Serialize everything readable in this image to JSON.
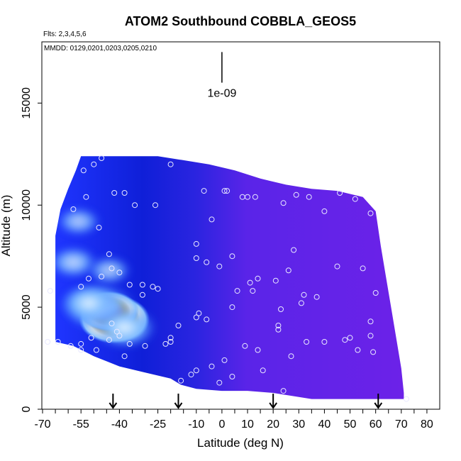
{
  "chart_data": {
    "type": "heatmap",
    "title": "ATOM2 Southbound COBBLA_GEOS5",
    "flights_note": "Flts: 2,3,4,5,6",
    "dates_note": "MMDD: 0129,0201,0203,0205,0210",
    "scale_label": "1e-09",
    "xlabel": "Latitude (deg N)",
    "ylabel": "Altitude (m)",
    "xlim": [
      -70,
      85
    ],
    "ylim": [
      0,
      18000
    ],
    "x_ticks": [
      -70,
      -55,
      -40,
      -25,
      -10,
      0,
      10,
      20,
      30,
      40,
      50,
      60,
      70,
      80
    ],
    "y_ticks": [
      0,
      5000,
      10000,
      15000
    ],
    "grid": false,
    "arrow_latitudes": [
      -42.5,
      -17.0,
      20.0,
      61.0
    ],
    "curtain_top": [
      [
        -65,
        8500
      ],
      [
        -63,
        9800
      ],
      [
        -60,
        10800
      ],
      [
        -57,
        11700
      ],
      [
        -55,
        12400
      ],
      [
        -40,
        12400
      ],
      [
        -35,
        12400
      ],
      [
        -25,
        12400
      ],
      [
        -15,
        12200
      ],
      [
        -5,
        12000
      ],
      [
        5,
        11700
      ],
      [
        15,
        11300
      ],
      [
        25,
        11000
      ],
      [
        35,
        10800
      ],
      [
        45,
        10700
      ],
      [
        55,
        10400
      ],
      [
        60,
        9700
      ],
      [
        62,
        8000
      ],
      [
        64,
        6500
      ],
      [
        66,
        5000
      ],
      [
        68,
        3500
      ],
      [
        70,
        2000
      ],
      [
        71,
        800
      ]
    ],
    "curtain_bottom": [
      [
        71,
        500
      ],
      [
        60,
        500
      ],
      [
        45,
        500
      ],
      [
        35,
        500
      ],
      [
        25,
        700
      ],
      [
        20,
        800
      ],
      [
        10,
        900
      ],
      [
        0,
        900
      ],
      [
        -10,
        1000
      ],
      [
        -16,
        1200
      ],
      [
        -20,
        1500
      ],
      [
        -30,
        1800
      ],
      [
        -40,
        2100
      ],
      [
        -50,
        2600
      ],
      [
        -58,
        3100
      ],
      [
        -65,
        3300
      ]
    ],
    "features": [
      {
        "lat": -42,
        "alt": 4400,
        "intensity": 1.0
      },
      {
        "lat": -44,
        "alt": 4800,
        "intensity": 0.8
      },
      {
        "lat": -48,
        "alt": 5000,
        "intensity": 0.5
      },
      {
        "lat": -52,
        "alt": 5200,
        "intensity": 0.35
      },
      {
        "lat": -38,
        "alt": 4000,
        "intensity": 0.4
      },
      {
        "lat": -58,
        "alt": 7200,
        "intensity": 0.25
      },
      {
        "lat": -56,
        "alt": 9200,
        "intensity": 0.2
      },
      {
        "lat": -44,
        "alt": 6800,
        "intensity": 0.2
      }
    ],
    "observations": [
      [
        -47,
        12300
      ],
      [
        -50,
        12000
      ],
      [
        -54,
        11700
      ],
      [
        -42,
        10600
      ],
      [
        -38,
        10600
      ],
      [
        -34,
        10000
      ],
      [
        -26,
        10000
      ],
      [
        -20,
        12000
      ],
      [
        -7,
        10700
      ],
      [
        1,
        10700
      ],
      [
        2,
        10700
      ],
      [
        8,
        10400
      ],
      [
        10,
        10400
      ],
      [
        13,
        10400
      ],
      [
        24,
        10100
      ],
      [
        29,
        10500
      ],
      [
        34,
        10400
      ],
      [
        46,
        10600
      ],
      [
        52,
        10300
      ],
      [
        40,
        9700
      ],
      [
        58,
        9600
      ],
      [
        -58,
        9800
      ],
      [
        -53,
        10400
      ],
      [
        -48,
        8900
      ],
      [
        -4,
        9300
      ],
      [
        -44,
        7600
      ],
      [
        -43,
        6900
      ],
      [
        -40,
        6700
      ],
      [
        -47,
        6500
      ],
      [
        -52,
        6400
      ],
      [
        -55,
        6000
      ],
      [
        -67,
        5800
      ],
      [
        -36,
        6100
      ],
      [
        -31,
        6100
      ],
      [
        -27,
        6000
      ],
      [
        -25,
        5900
      ],
      [
        -31,
        5600
      ],
      [
        -10,
        8100
      ],
      [
        -10,
        7400
      ],
      [
        -6,
        7200
      ],
      [
        -1,
        7000
      ],
      [
        4,
        7500
      ],
      [
        28,
        7800
      ],
      [
        26,
        6800
      ],
      [
        21,
        6300
      ],
      [
        14,
        6400
      ],
      [
        11,
        6200
      ],
      [
        12,
        5800
      ],
      [
        6,
        5800
      ],
      [
        45,
        7000
      ],
      [
        55,
        6900
      ],
      [
        60,
        5700
      ],
      [
        32,
        5600
      ],
      [
        37,
        5500
      ],
      [
        31,
        5200
      ],
      [
        4,
        5000
      ],
      [
        23,
        4900
      ],
      [
        58,
        4300
      ],
      [
        50,
        3500
      ],
      [
        -10,
        4500
      ],
      [
        -9,
        4700
      ],
      [
        -6,
        4400
      ],
      [
        -17,
        4100
      ],
      [
        -20,
        3500
      ],
      [
        -43,
        4200
      ],
      [
        -41,
        3800
      ],
      [
        -40,
        3600
      ],
      [
        -44,
        3400
      ],
      [
        -51,
        3500
      ],
      [
        -55,
        3200
      ],
      [
        -59,
        3100
      ],
      [
        -64,
        3300
      ],
      [
        -68,
        3300
      ],
      [
        -36,
        3200
      ],
      [
        -30,
        3100
      ],
      [
        -20,
        3300
      ],
      [
        -22,
        3200
      ],
      [
        -49,
        2900
      ],
      [
        -55,
        2900
      ],
      [
        -38,
        2600
      ],
      [
        22,
        4100
      ],
      [
        22,
        3900
      ],
      [
        33,
        3300
      ],
      [
        40,
        3300
      ],
      [
        48,
        3400
      ],
      [
        53,
        2900
      ],
      [
        58,
        3600
      ],
      [
        59,
        2800
      ],
      [
        9,
        3100
      ],
      [
        14,
        2900
      ],
      [
        27,
        2600
      ],
      [
        1,
        2400
      ],
      [
        -4,
        2100
      ],
      [
        -10,
        1900
      ],
      [
        -16,
        1400
      ],
      [
        -12,
        1700
      ],
      [
        4,
        1600
      ],
      [
        16,
        1900
      ],
      [
        -1,
        1300
      ],
      [
        24,
        900
      ],
      [
        72,
        500
      ]
    ]
  }
}
